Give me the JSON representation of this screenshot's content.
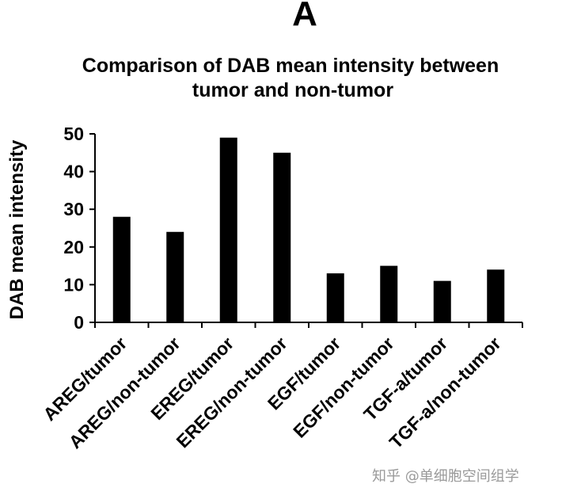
{
  "panel_label": "A",
  "watermark": "知乎 @单细胞空间组学",
  "chart_data": {
    "type": "bar",
    "title_lines": [
      "Comparison of DAB mean intensity between",
      "tumor and non-tumor"
    ],
    "ylabel": "DAB mean intensity",
    "xlabel": "",
    "ylim": [
      0,
      50
    ],
    "yticks": [
      0,
      10,
      20,
      30,
      40,
      50
    ],
    "categories": [
      "AREG/tumor",
      "AREG/non-tumor",
      "EREG/tumor",
      "EREG/non-tumor",
      "EGF/tumor",
      "EGF/non-tumor",
      "TGF-a/tumor",
      "TGF-a/non-tumor"
    ],
    "values": [
      28,
      24,
      49,
      45,
      13,
      15,
      11,
      14
    ],
    "bar_color": "#000000",
    "grid": false,
    "legend": "none"
  }
}
